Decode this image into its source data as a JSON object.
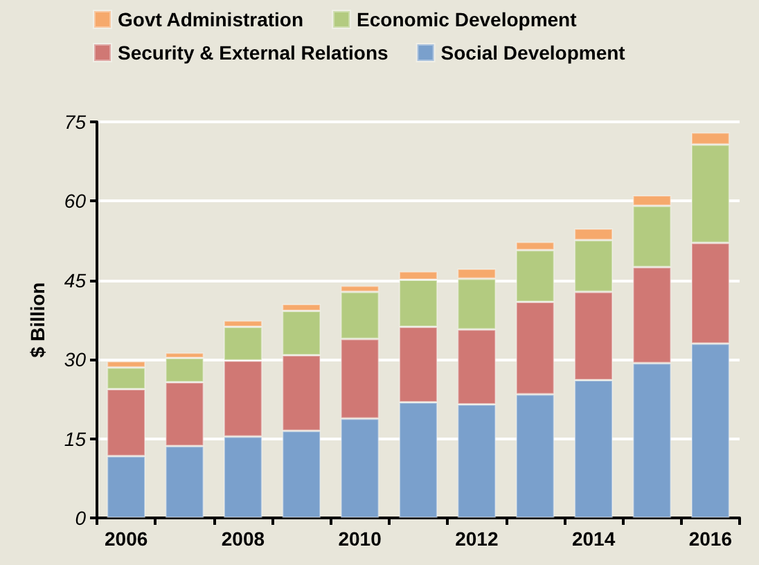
{
  "chart_data": {
    "type": "bar",
    "stacked": true,
    "ylabel": "$ Billion",
    "legend": "top",
    "grid": "y",
    "categories": [
      "2006",
      null,
      "2008",
      null,
      "2010",
      null,
      "2012",
      null,
      "2014",
      null,
      "2016"
    ],
    "ylim": [
      0,
      75
    ],
    "yticks": [
      0,
      15,
      30,
      45,
      60,
      75
    ],
    "series": [
      {
        "name": "Social Development",
        "color": "#7aa0cc",
        "values": [
          11.7,
          13.6,
          15.4,
          16.5,
          18.8,
          21.9,
          21.5,
          23.4,
          26.1,
          29.3,
          33.0
        ]
      },
      {
        "name": "Security & External Relations",
        "color": "#d07874",
        "values": [
          12.7,
          12.1,
          14.4,
          14.3,
          15.1,
          14.3,
          14.2,
          17.5,
          16.7,
          18.2,
          19.1
        ]
      },
      {
        "name": "Economic Development",
        "color": "#b3cb80",
        "values": [
          4.1,
          4.6,
          6.4,
          8.4,
          8.9,
          8.9,
          9.6,
          9.8,
          9.8,
          11.6,
          18.6
        ]
      },
      {
        "name": "Govt Administration",
        "color": "#f6a96c",
        "values": [
          1.2,
          1.0,
          1.2,
          1.3,
          1.2,
          1.6,
          1.9,
          1.6,
          2.2,
          2.0,
          2.3
        ]
      }
    ]
  }
}
